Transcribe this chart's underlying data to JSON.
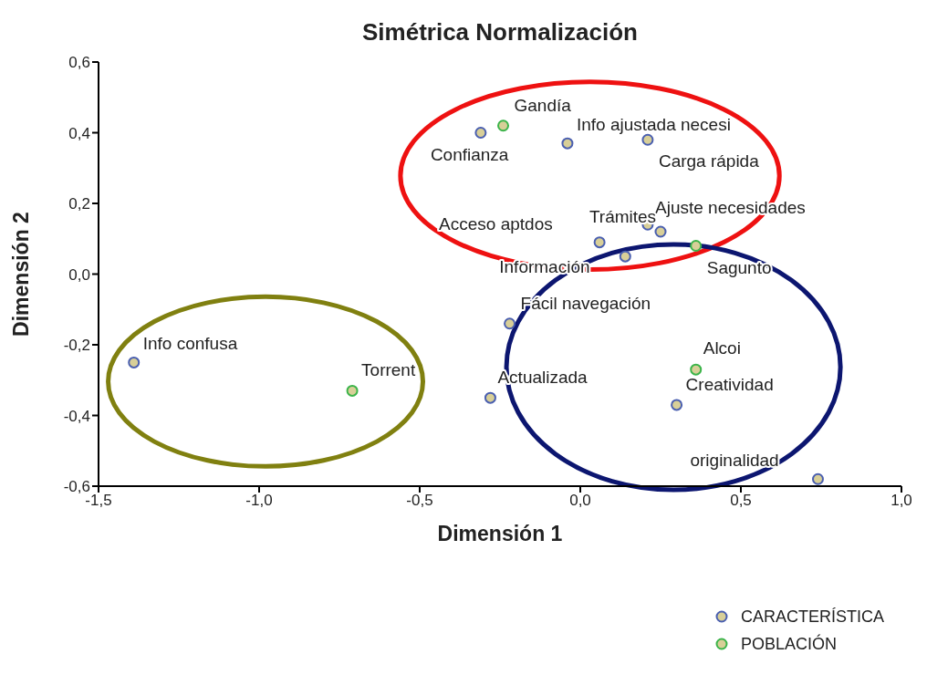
{
  "chart_data": {
    "type": "scatter",
    "title": "Simétrica Normalización",
    "xlabel": "Dimensión 1",
    "ylabel": "Dimensión 2",
    "xlim": [
      -1.5,
      1.0
    ],
    "xticks": [
      {
        "value": -1.5,
        "label": "-1,5"
      },
      {
        "value": -1.0,
        "label": "-1,0"
      },
      {
        "value": -0.5,
        "label": "-0,5"
      },
      {
        "value": 0.0,
        "label": "0,0"
      },
      {
        "value": 0.5,
        "label": "0,5"
      },
      {
        "value": 1.0,
        "label": "1,0"
      }
    ],
    "ylim": [
      -0.6,
      0.6
    ],
    "yticks": [
      {
        "value": -0.6,
        "label": "-0,6"
      },
      {
        "value": -0.4,
        "label": "-0,4"
      },
      {
        "value": -0.2,
        "label": "-0,2"
      },
      {
        "value": 0.0,
        "label": "0,0"
      },
      {
        "value": 0.2,
        "label": "0,2"
      },
      {
        "value": 0.4,
        "label": "0,4"
      },
      {
        "value": 0.6,
        "label": "0,6"
      }
    ],
    "grid": false,
    "legend": "bottom right",
    "marker": "circle",
    "series": [
      {
        "name": "CARACTERÍSTICA",
        "color": "#4a5fb0",
        "x": [
          -1.39,
          -0.31,
          -0.04,
          0.21,
          0.21,
          0.25,
          0.06,
          0.14,
          -0.22,
          -0.28,
          0.3,
          0.74
        ],
        "values": [
          -0.25,
          0.4,
          0.37,
          0.38,
          0.14,
          0.12,
          0.09,
          0.05,
          -0.14,
          -0.35,
          -0.37,
          -0.58
        ]
      },
      {
        "name": "POBLACIÓN",
        "color": "#3cb44a",
        "x": [
          -0.24,
          0.36,
          0.36,
          -0.71
        ],
        "values": [
          0.42,
          0.08,
          -0.27,
          -0.33
        ]
      }
    ],
    "annotations": [
      {
        "text": "Info confusa",
        "x": -1.39,
        "y": -0.25
      },
      {
        "text": "Confianza",
        "x": -0.31,
        "y": 0.4
      },
      {
        "text": "Info ajustada necesi",
        "x": -0.04,
        "y": 0.37
      },
      {
        "text": "Carga rápida",
        "x": 0.21,
        "y": 0.38
      },
      {
        "text": "Ajuste necesidades",
        "x": 0.25,
        "y": 0.12
      },
      {
        "text": "Información",
        "x": 0.14,
        "y": 0.05
      },
      {
        "text": "Acceso aptdos",
        "x": 0.06,
        "y": 0.09
      },
      {
        "text": "Trámites",
        "x": 0.21,
        "y": 0.14
      },
      {
        "text": "Fácil navegación",
        "x": -0.22,
        "y": -0.14
      },
      {
        "text": "Actualizada",
        "x": -0.28,
        "y": -0.35
      },
      {
        "text": "Creatividad",
        "x": 0.3,
        "y": -0.37
      },
      {
        "text": "originalidad",
        "x": 0.74,
        "y": -0.58
      },
      {
        "text": "Gandía",
        "x": -0.24,
        "y": 0.42
      },
      {
        "text": "Sagunto",
        "x": 0.36,
        "y": 0.08
      },
      {
        "text": "Alcoi",
        "x": 0.36,
        "y": -0.27
      },
      {
        "text": "Torrent",
        "x": -0.71,
        "y": -0.33
      }
    ]
  }
}
